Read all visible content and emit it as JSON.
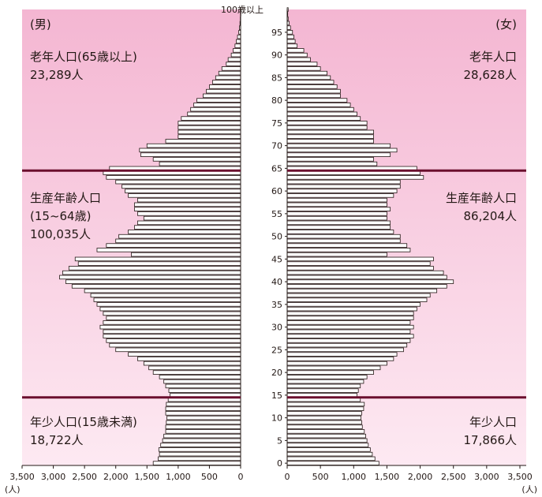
{
  "chart_data": {
    "type": "bar",
    "orientation": "horizontal-population-pyramid",
    "ages": [
      0,
      1,
      2,
      3,
      4,
      5,
      6,
      7,
      8,
      9,
      10,
      11,
      12,
      13,
      14,
      15,
      16,
      17,
      18,
      19,
      20,
      21,
      22,
      23,
      24,
      25,
      26,
      27,
      28,
      29,
      30,
      31,
      32,
      33,
      34,
      35,
      36,
      37,
      38,
      39,
      40,
      41,
      42,
      43,
      44,
      45,
      46,
      47,
      48,
      49,
      50,
      51,
      52,
      53,
      54,
      55,
      56,
      57,
      58,
      59,
      60,
      61,
      62,
      63,
      64,
      65,
      66,
      67,
      68,
      69,
      70,
      71,
      72,
      73,
      74,
      75,
      76,
      77,
      78,
      79,
      80,
      81,
      82,
      83,
      84,
      85,
      86,
      87,
      88,
      89,
      90,
      91,
      92,
      93,
      94,
      95,
      96,
      97,
      98,
      99,
      100
    ],
    "age_tick_labels": [
      "0",
      "5",
      "10",
      "15",
      "20",
      "25",
      "30",
      "35",
      "40",
      "45",
      "50",
      "55",
      "60",
      "65",
      "70",
      "75",
      "80",
      "85",
      "90",
      "95",
      "100歳以上"
    ],
    "series": [
      {
        "name": "(男)",
        "values": [
          1400,
          1320,
          1300,
          1310,
          1280,
          1250,
          1230,
          1200,
          1200,
          1190,
          1180,
          1200,
          1200,
          1190,
          1160,
          1130,
          1150,
          1200,
          1230,
          1300,
          1400,
          1470,
          1550,
          1650,
          1800,
          2000,
          2100,
          2150,
          2200,
          2200,
          2250,
          2200,
          2150,
          2200,
          2250,
          2300,
          2350,
          2400,
          2500,
          2700,
          2800,
          2900,
          2850,
          2750,
          2600,
          2650,
          1750,
          2300,
          2150,
          2000,
          1950,
          1800,
          1700,
          1650,
          1550,
          1650,
          1700,
          1700,
          1650,
          1800,
          1850,
          1900,
          2000,
          2150,
          2200,
          2100,
          1300,
          1400,
          1600,
          1620,
          1500,
          1200,
          1000,
          1000,
          1000,
          1000,
          950,
          850,
          800,
          750,
          700,
          600,
          550,
          500,
          450,
          400,
          350,
          300,
          230,
          200,
          150,
          120,
          90,
          70,
          50,
          30,
          20,
          10,
          5,
          3,
          5
        ]
      },
      {
        "name": "(女)",
        "values": [
          1380,
          1320,
          1280,
          1250,
          1220,
          1200,
          1180,
          1160,
          1130,
          1120,
          1110,
          1120,
          1150,
          1160,
          1100,
          1050,
          1070,
          1100,
          1150,
          1200,
          1300,
          1400,
          1500,
          1600,
          1650,
          1750,
          1800,
          1850,
          1900,
          1850,
          1900,
          1850,
          1900,
          1900,
          1950,
          2000,
          2100,
          2150,
          2250,
          2400,
          2500,
          2400,
          2350,
          2200,
          2150,
          2200,
          1500,
          1850,
          1800,
          1700,
          1700,
          1600,
          1550,
          1550,
          1500,
          1500,
          1550,
          1500,
          1500,
          1600,
          1650,
          1700,
          1700,
          2050,
          2000,
          1950,
          1350,
          1300,
          1550,
          1650,
          1550,
          1300,
          1300,
          1300,
          1200,
          1200,
          1100,
          1050,
          1000,
          950,
          900,
          800,
          800,
          750,
          700,
          650,
          600,
          500,
          450,
          350,
          300,
          250,
          150,
          120,
          100,
          80,
          50,
          30,
          15,
          8,
          15
        ]
      }
    ],
    "xlim": [
      0,
      3500
    ],
    "x_tick_labels": [
      "3,500",
      "3,000",
      "2,500",
      "2,000",
      "1,500",
      "1,000",
      "500",
      "0",
      "0",
      "500",
      "1,000",
      "1,500",
      "2,000",
      "2,500",
      "3,000",
      "3,500"
    ],
    "x_unit_left": "(人)",
    "x_unit_right": "(人)",
    "annotations": {
      "male_elderly_label": "老年人口(65歳以上)",
      "male_elderly_value": "23,289人",
      "male_working_label": "生産年齢人口",
      "male_working_range": "(15~64歳)",
      "male_working_value": "100,035人",
      "male_young_label": "年少人口(15歳未満)",
      "male_young_value": "18,722人",
      "female_elderly_label": "老年人口",
      "female_elderly_value": "28,628人",
      "female_working_label": "生産年齢人口",
      "female_working_value": "86,204人",
      "female_young_label": "年少人口",
      "female_young_value": "17,866人"
    },
    "colors": {
      "top_pink": "#f4b6d2",
      "bottom_pink": "#fde9f2",
      "divider": "#6b0f2e",
      "bar_fill": "#ffffff",
      "ink": "#231815"
    }
  }
}
